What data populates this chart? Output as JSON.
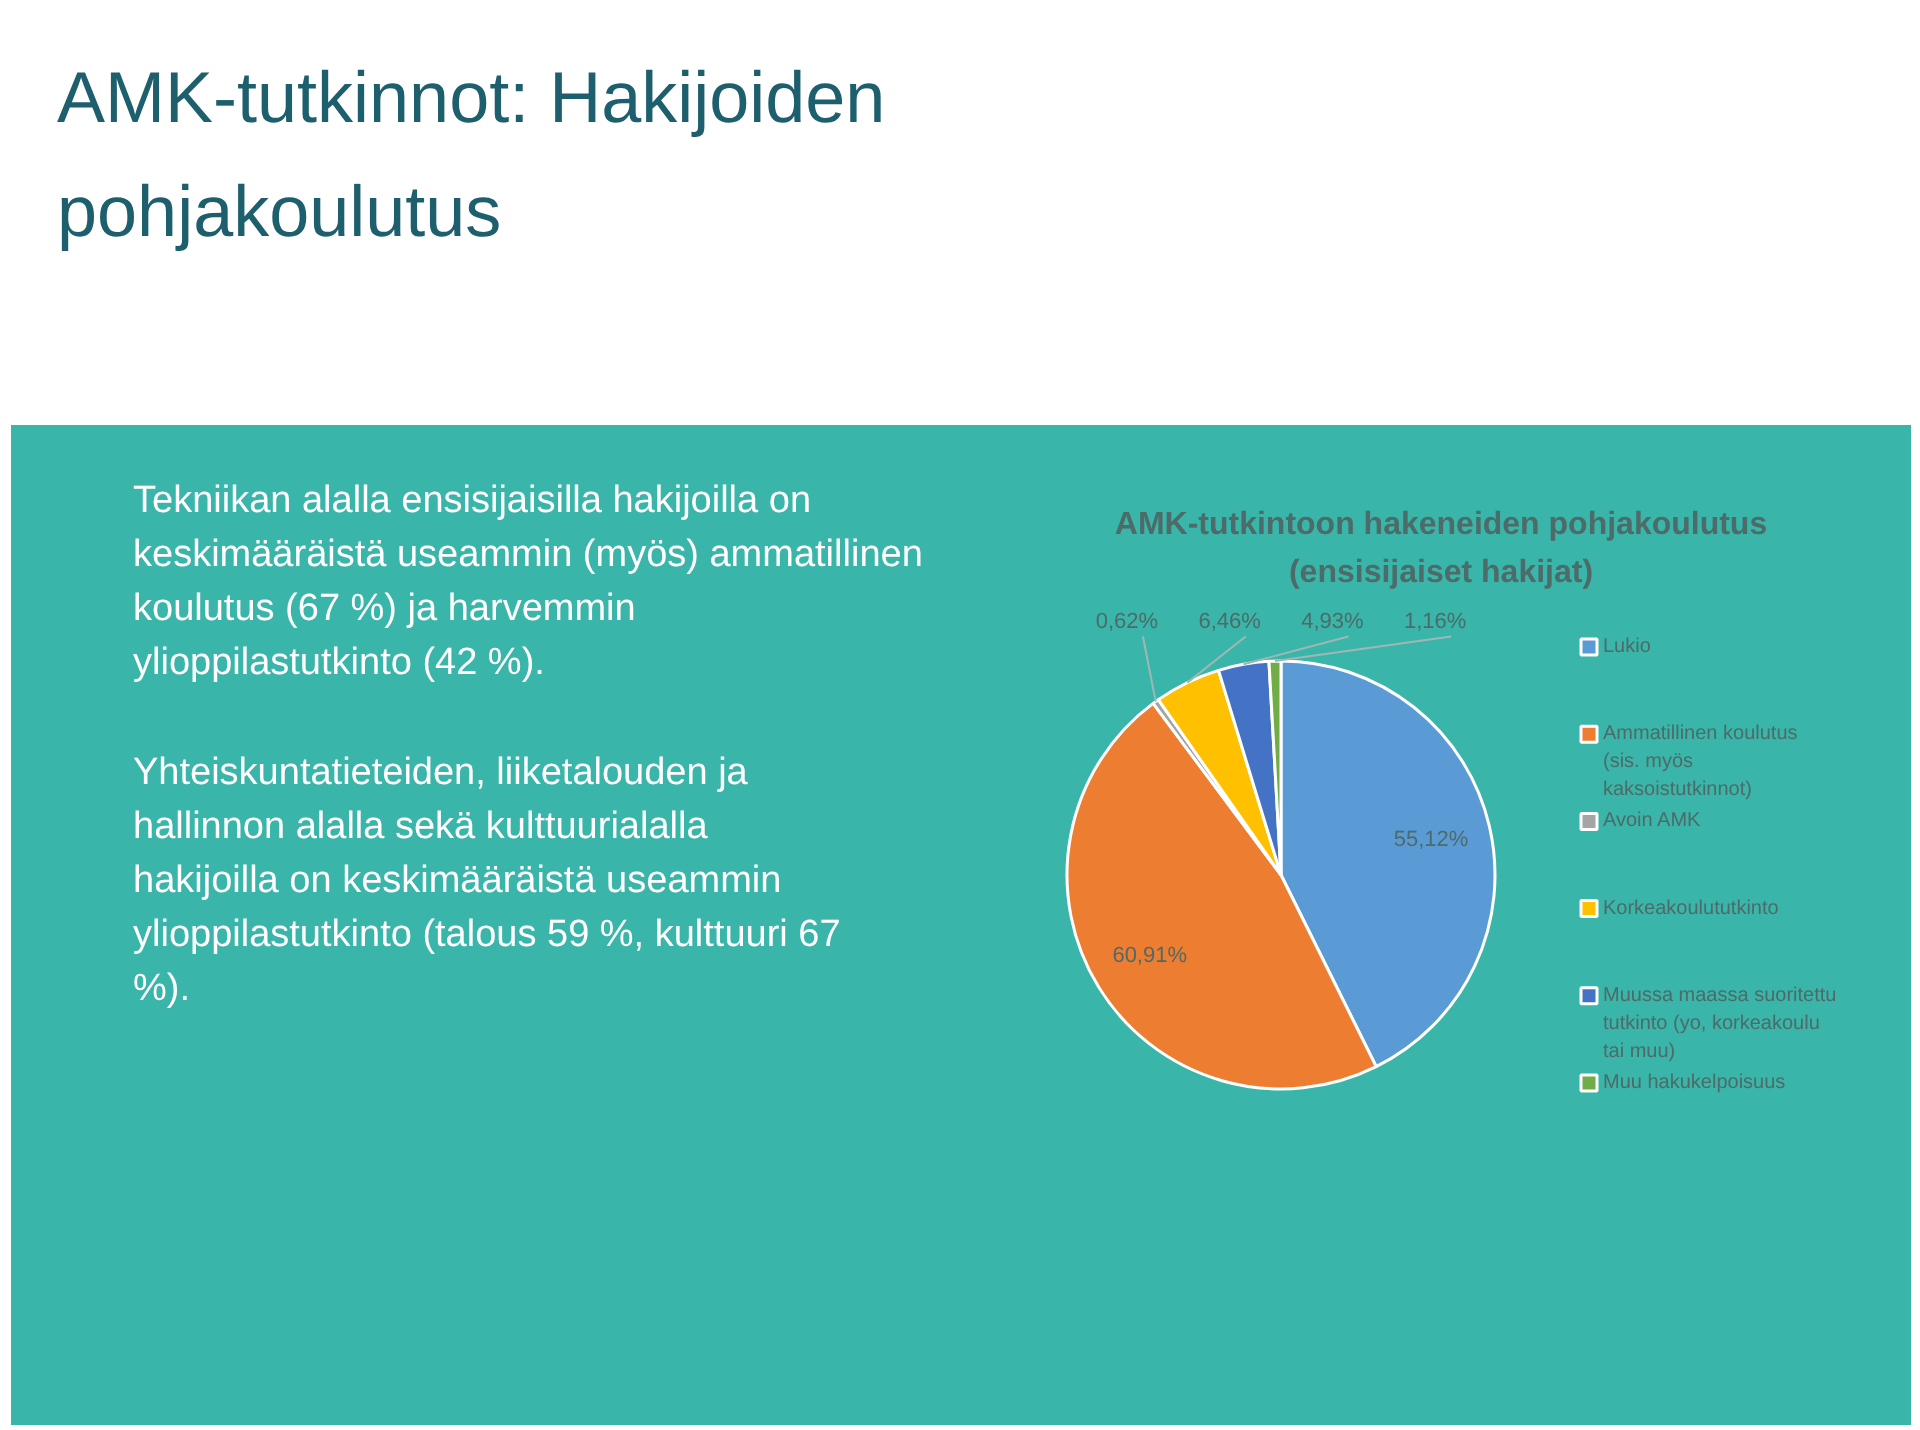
{
  "chart_data": {
    "type": "pie",
    "title": "AMK-tutkintoon hakeneiden pohjakoulutus (ensisijaiset hakijat)",
    "categories": [
      "Lukio",
      "Ammatillinen koulutus (sis. myös kaksoistutkinnot)",
      "Avoin AMK",
      "Korkeakoulututkinto",
      "Muussa maassa suoritettu tutkinto (yo, korkeakoulu tai muu)",
      "Muu hakukelpoisuus"
    ],
    "values": [
      55.12,
      60.91,
      0.62,
      6.46,
      4.93,
      1.16
    ],
    "colors": [
      "#5b9bd5",
      "#ed7d31",
      "#a5a5a5",
      "#ffc000",
      "#4472c4",
      "#70ad47"
    ],
    "value_labels": [
      "55,12%",
      "60,91%",
      "0,62%",
      "6,46%",
      "4,93%",
      "1,16%"
    ],
    "legend": "right",
    "annotations": [
      "AMK-tutkinnot: Hakijoiden pohjakoulutus",
      "Tekniikan alalla ensisijaisilla hakijoilla on keskimääräistä useammin (myös) ammatillinen koulutus (67 %) ja harvemmin ylioppilastutkinto (42 %).",
      "Yhteiskuntatieteiden, liiketalouden ja hallinnon alalla sekä kulttuurialalla hakijoilla on keskimääräistä useammin ylioppilastutkinto (talous 59 %, kulttuuri 67 %)."
    ]
  }
}
